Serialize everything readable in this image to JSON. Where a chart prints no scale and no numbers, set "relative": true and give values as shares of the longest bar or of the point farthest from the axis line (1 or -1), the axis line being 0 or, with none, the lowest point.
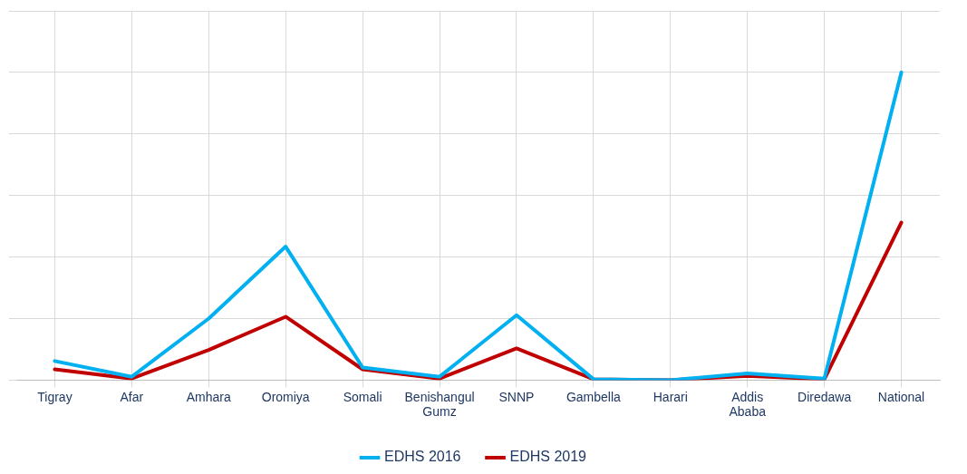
{
  "chart_data": {
    "type": "line",
    "relative": true,
    "grid": true,
    "legend": "bottom",
    "marker": "none",
    "line_style": "solid",
    "categories": [
      "Tigray",
      "Afar",
      "Amhara",
      "Oromiya",
      "Somali",
      "Benishangul Gumz",
      "SNNP",
      "Gambella",
      "Harari",
      "Addis Ababa",
      "Diredawa",
      "National"
    ],
    "series": [
      {
        "name": "EDHS 2016",
        "color": "#00b0f0",
        "values": [
          0.062,
          0.011,
          0.2,
          0.434,
          0.041,
          0.011,
          0.211,
          0.003,
          0,
          0.022,
          0.005,
          1
        ]
      },
      {
        "name": "EDHS 2019",
        "color": "#c00000",
        "values": [
          0.035,
          0.005,
          0.098,
          0.206,
          0.035,
          0.005,
          0.103,
          0.003,
          0,
          0.014,
          0.003,
          0.512
        ]
      }
    ]
  }
}
